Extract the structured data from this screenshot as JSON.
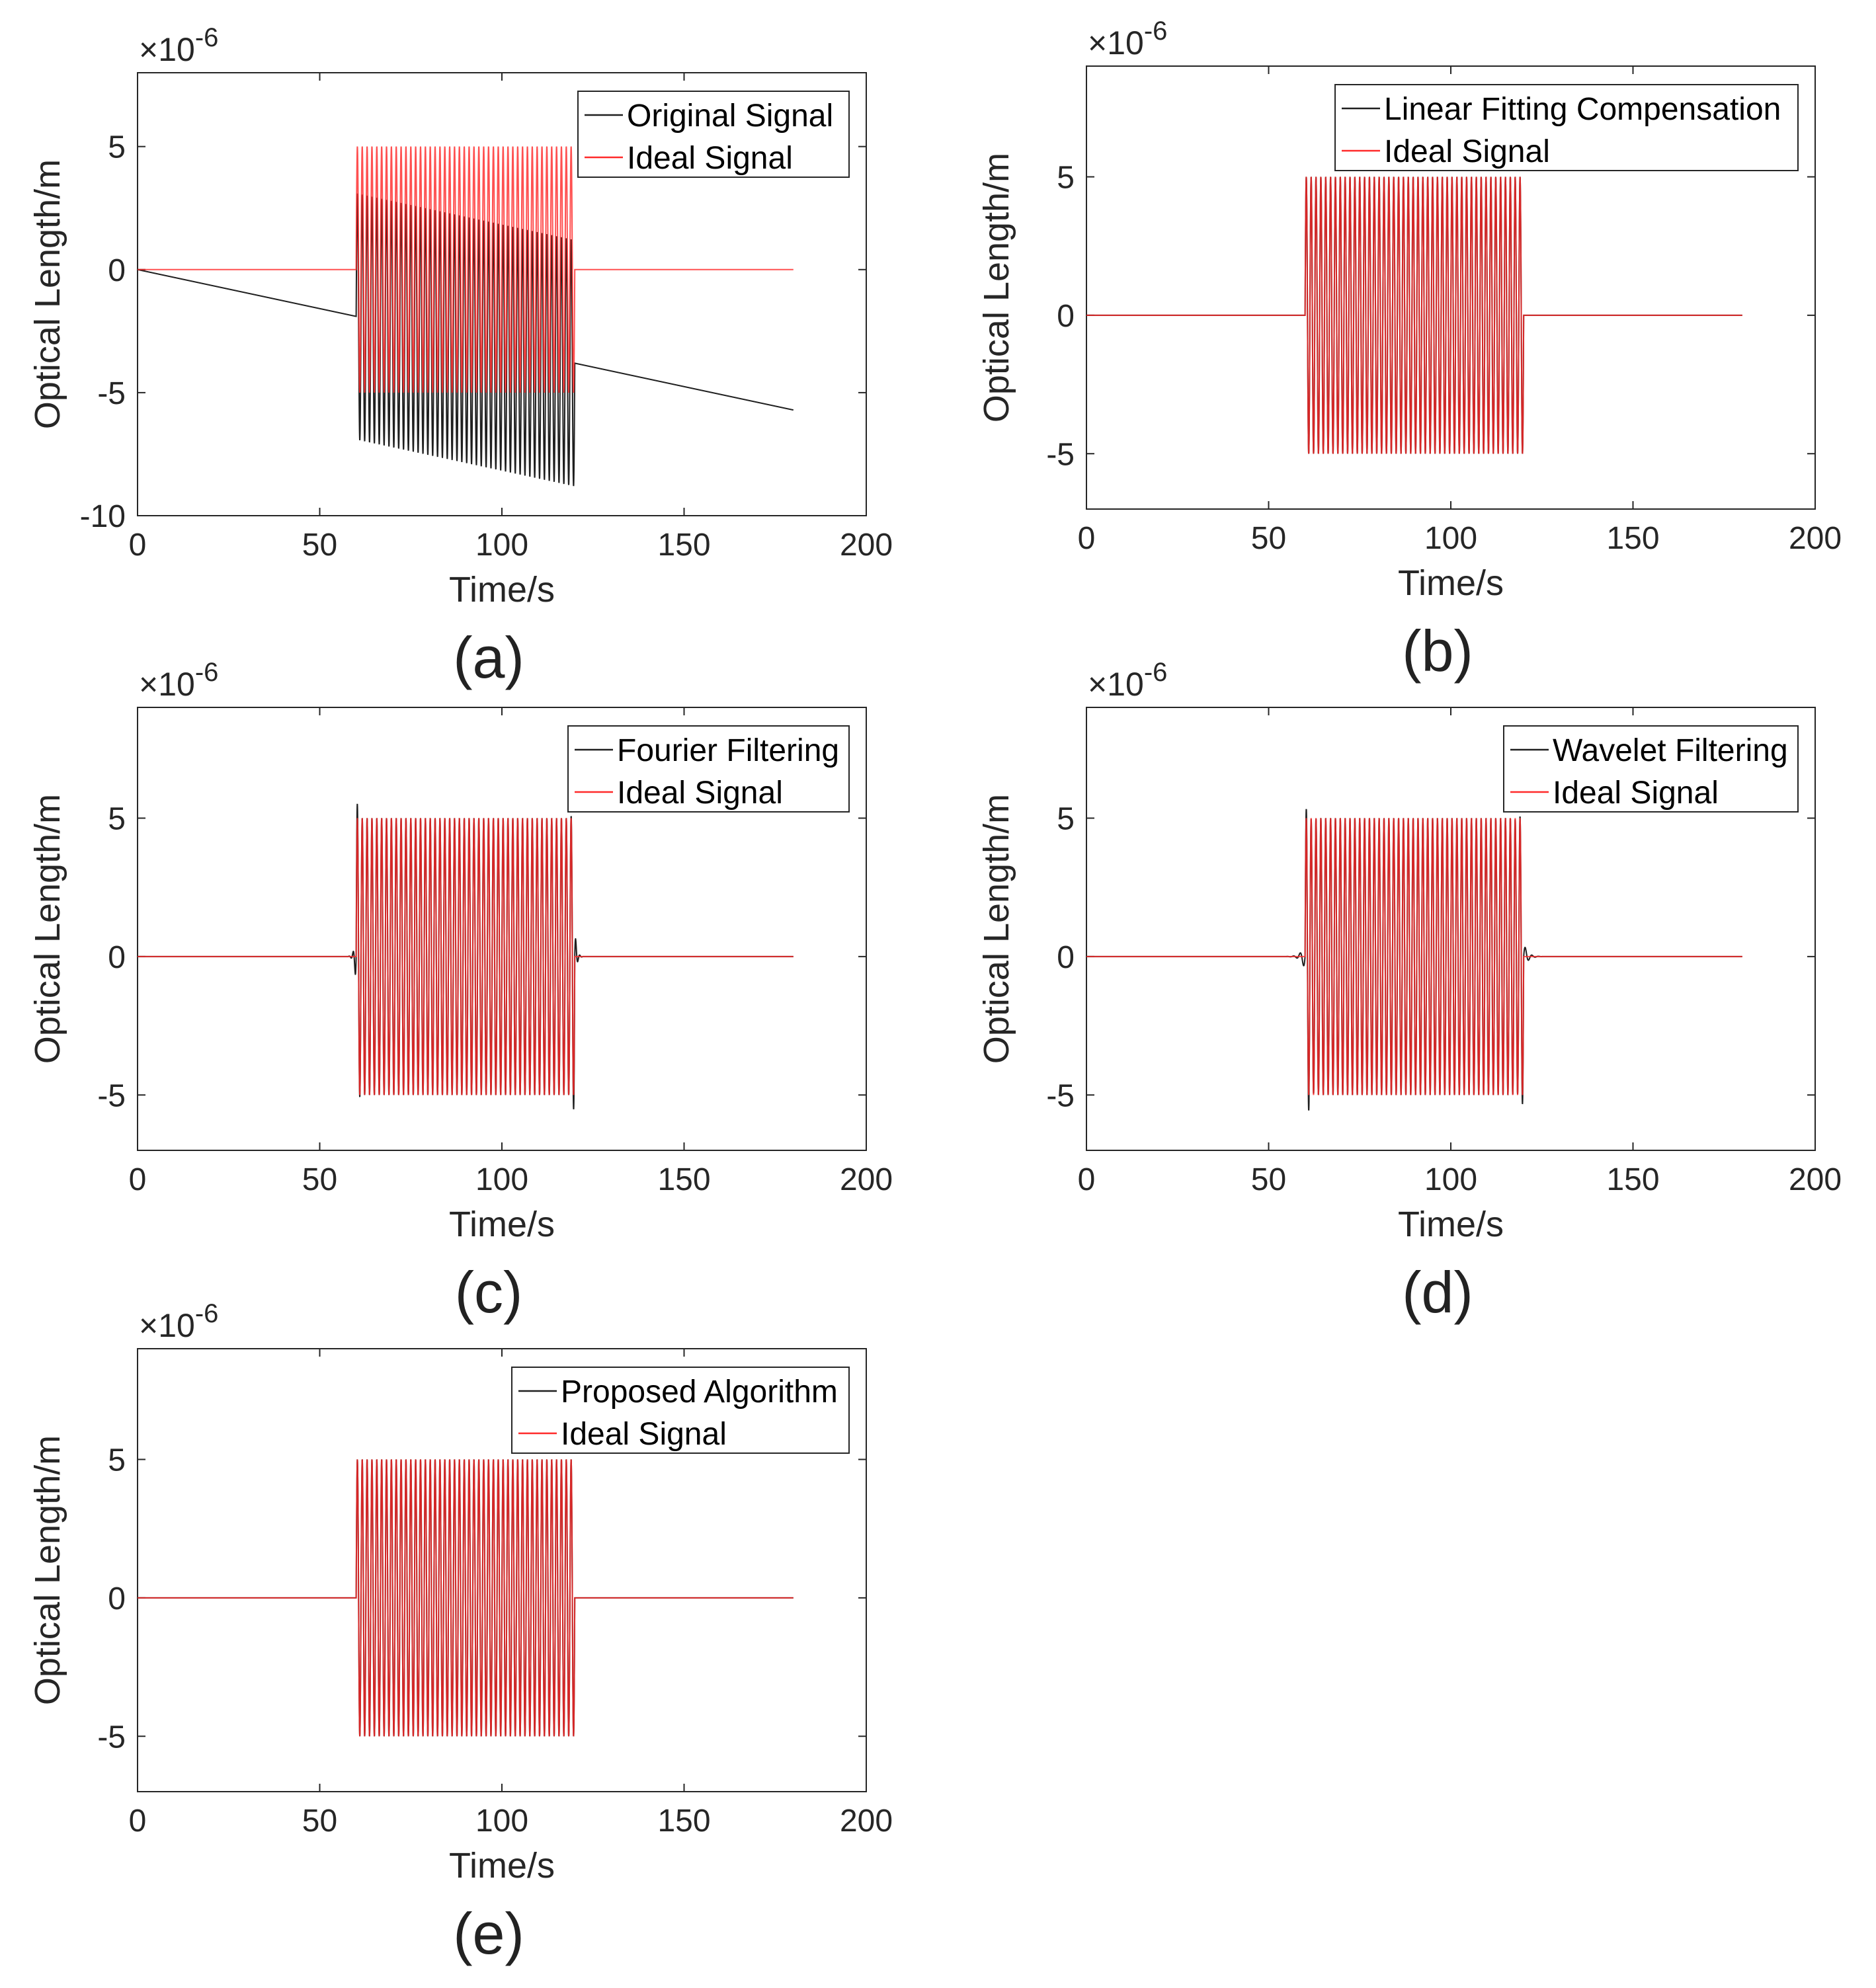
{
  "figure": {
    "background": "#ffffff"
  },
  "colors": {
    "processed": "#1f1f1f",
    "ideal": "#ff2a2a",
    "axis": "#262626"
  },
  "common": {
    "xlabel": "Time/s",
    "ylabel": "Optical Length/m",
    "multiplier_base": "×10",
    "multiplier_exp": "-6",
    "signal": {
      "t_start": 60,
      "t_end": 120,
      "t_total": 180,
      "amplitude": 5,
      "cycles": 45
    }
  },
  "chart_data": [
    {
      "panel": "(a)",
      "type": "line",
      "title": "",
      "xlabel": "Time/s",
      "ylabel": "Optical Length/m",
      "xlim": [
        0,
        200
      ],
      "ylim": [
        -10,
        8
      ],
      "xticks": [
        0,
        50,
        100,
        150,
        200
      ],
      "yticks": [
        -10,
        -5,
        0,
        5
      ],
      "multiplier": "×10^-6",
      "series": [
        {
          "name": "Original Signal",
          "color": "#1f1f1f",
          "description": "ideal signal plus linear drift from 0 at t=0 to -5.7 at t=180 (units 1e-6 m)",
          "drift_slope": -0.0317
        },
        {
          "name": "Ideal Signal",
          "color": "#ff2a2a",
          "description": "0 outside [60,120]; sine of amplitude 5 within [60,120]"
        }
      ],
      "legend": "top-right"
    },
    {
      "panel": "(b)",
      "type": "line",
      "title": "",
      "xlabel": "Time/s",
      "ylabel": "Optical Length/m",
      "xlim": [
        0,
        200
      ],
      "ylim": [
        -7,
        9
      ],
      "xticks": [
        0,
        50,
        100,
        150,
        200
      ],
      "yticks": [
        -5,
        0,
        5
      ],
      "multiplier": "×10^-6",
      "series": [
        {
          "name": "Linear Fitting Compensation",
          "color": "#1f1f1f",
          "description": "nearly identical to ideal signal"
        },
        {
          "name": "Ideal Signal",
          "color": "#ff2a2a"
        }
      ],
      "legend": "top-right"
    },
    {
      "panel": "(c)",
      "type": "line",
      "title": "",
      "xlabel": "Time/s",
      "ylabel": "Optical Length/m",
      "xlim": [
        0,
        200
      ],
      "ylim": [
        -7,
        9
      ],
      "xticks": [
        0,
        50,
        100,
        150,
        200
      ],
      "yticks": [
        -5,
        0,
        5
      ],
      "multiplier": "×10^-6",
      "series": [
        {
          "name": "Fourier Filtering",
          "color": "#1f1f1f",
          "description": "ideal signal with ringing near t=60 and t=120 (peak about ±1.1)"
        },
        {
          "name": "Ideal Signal",
          "color": "#ff2a2a"
        }
      ],
      "legend": "top-right"
    },
    {
      "panel": "(d)",
      "type": "line",
      "title": "",
      "xlabel": "Time/s",
      "ylabel": "Optical Length/m",
      "xlim": [
        0,
        200
      ],
      "ylim": [
        -7,
        9
      ],
      "xticks": [
        0,
        50,
        100,
        150,
        200
      ],
      "yticks": [
        -5,
        0,
        5
      ],
      "multiplier": "×10^-6",
      "series": [
        {
          "name": "Wavelet Filtering",
          "color": "#1f1f1f",
          "description": "ideal signal with small oscillations near edges, dip to about -5.5 at t≈61"
        },
        {
          "name": "Ideal Signal",
          "color": "#ff2a2a"
        }
      ],
      "legend": "top-right"
    },
    {
      "panel": "(e)",
      "type": "line",
      "title": "",
      "xlabel": "Time/s",
      "ylabel": "Optical Length/m",
      "xlim": [
        0,
        200
      ],
      "ylim": [
        -7,
        9
      ],
      "xticks": [
        0,
        50,
        100,
        150,
        200
      ],
      "yticks": [
        -5,
        0,
        5
      ],
      "multiplier": "×10^-6",
      "series": [
        {
          "name": "Proposed Algorithm",
          "color": "#1f1f1f",
          "description": "coincides with ideal signal"
        },
        {
          "name": "Ideal Signal",
          "color": "#ff2a2a"
        }
      ],
      "legend": "top-right"
    }
  ]
}
